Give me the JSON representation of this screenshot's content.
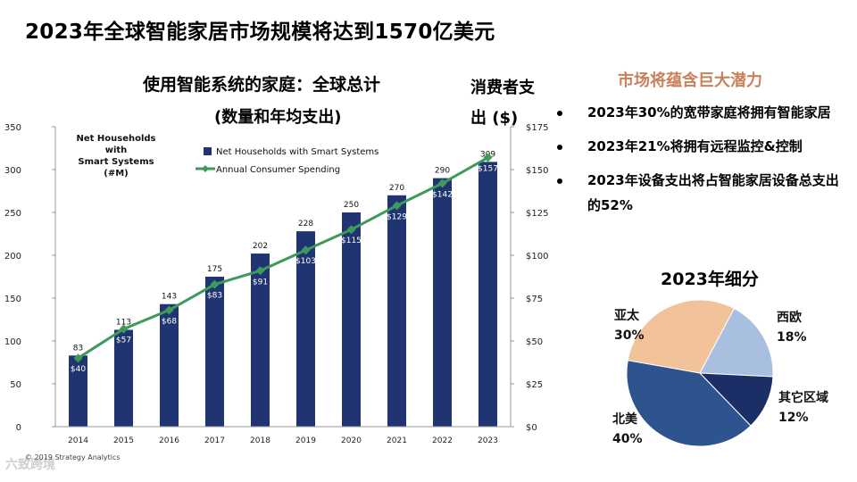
{
  "page": {
    "main_title": "2023年全球智能家居市场规模将达到1570亿美元",
    "chart_title": "使用智能系统的家庭：全球总计",
    "chart_subtitle": "(数量和年均支出)",
    "right_axis_title_line1": "消费者支",
    "right_axis_title_line2": "出 ($)",
    "copyright": "© 2019 Strategy Analytics",
    "watermark": "六致跨境",
    "potential_heading": "市场将蕴含巨大潜力",
    "bullets": [
      "2023年30%的宽带家庭将拥有智能家居",
      "2023年21%将拥有远程监控&控制",
      "2023年设备支出将占智能家居设备总支出的52%"
    ],
    "pie_title": "2023年细分"
  },
  "colors": {
    "bar": "#1f3470",
    "line": "#3d9a5b",
    "pie_apac": "#f2c29a",
    "pie_weurope": "#a8bfdf",
    "pie_other": "#1b2f66",
    "pie_namerica": "#2e5490"
  },
  "chart_data": [
    {
      "type": "bar",
      "title": "使用智能系统的家庭：全球总计",
      "subtitle": "(数量和年均支出)",
      "categories": [
        "2014",
        "2015",
        "2016",
        "2017",
        "2018",
        "2019",
        "2020",
        "2021",
        "2022",
        "2023"
      ],
      "series": [
        {
          "name": "Net Households with Smart Systems",
          "axis": "left",
          "values": [
            83,
            113,
            143,
            175,
            202,
            228,
            250,
            270,
            290,
            309
          ],
          "labels": [
            "83",
            "113",
            "143",
            "175",
            "202",
            "228",
            "250",
            "270",
            "290",
            "309"
          ]
        },
        {
          "name": "Annual Consumer Spending",
          "type": "line",
          "axis": "right",
          "values": [
            40,
            57,
            68,
            83,
            91,
            103,
            115,
            129,
            142,
            157
          ],
          "labels": [
            "$40",
            "$57",
            "$68",
            "$83",
            "$91",
            "$103",
            "$115",
            "$129",
            "$142",
            "$157"
          ]
        }
      ],
      "ylabel_left_lines": [
        "Net Households",
        "with",
        "Smart Systems",
        "(#M)"
      ],
      "ylabel_right": "消费者支出 ($)",
      "ylim_left": [
        0,
        350
      ],
      "yticks_left": [
        "0",
        "50",
        "100",
        "150",
        "200",
        "250",
        "300",
        "350"
      ],
      "ylim_right": [
        0,
        175
      ],
      "yticks_right": [
        "$0",
        "$25",
        "$50",
        "$75",
        "$100",
        "$125",
        "$150",
        "$175"
      ],
      "legend": [
        "Net Households with Smart Systems",
        "Annual Consumer Spending"
      ],
      "legend_position": "top"
    },
    {
      "type": "pie",
      "title": "2023年细分",
      "labels": [
        "亚太",
        "西欧",
        "其它区域",
        "北美"
      ],
      "values": [
        30,
        18,
        12,
        40
      ],
      "value_labels": [
        "30%",
        "18%",
        "12%",
        "40%"
      ]
    }
  ]
}
